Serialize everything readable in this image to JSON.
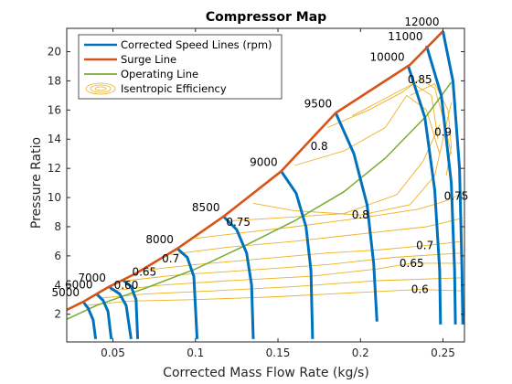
{
  "chart_data": {
    "type": "line",
    "title": "Compressor Map",
    "xlabel": "Corrected Mass Flow Rate (kg/s)",
    "ylabel": "Pressure Ratio",
    "xlim": [
      0.022,
      0.263
    ],
    "ylim": [
      0.1,
      21.6
    ],
    "xticks": [
      0.05,
      0.1,
      0.15,
      0.2,
      0.25
    ],
    "xtick_labels": [
      "0.05",
      "0.1",
      "0.15",
      "0.2",
      "0.25"
    ],
    "yticks": [
      2,
      4,
      6,
      8,
      10,
      12,
      14,
      16,
      18,
      20
    ],
    "ytick_labels": [
      "2",
      "4",
      "6",
      "8",
      "10",
      "12",
      "14",
      "16",
      "18",
      "20"
    ],
    "grid": false,
    "legend_position": "top-left",
    "legend": [
      {
        "label": "Corrected Speed Lines (rpm)",
        "style": "speed"
      },
      {
        "label": "Surge Line",
        "style": "surge"
      },
      {
        "label": "Operating Line",
        "style": "operating"
      },
      {
        "label": "Isentropic Efficiency",
        "style": "efficiency"
      }
    ],
    "colors": {
      "speed": "#0072BD",
      "surge": "#D95319",
      "operating": "#77AC30",
      "efficiency": "#EDB120"
    },
    "surge_line": [
      [
        0.022,
        2.3
      ],
      [
        0.032,
        2.85
      ],
      [
        0.047,
        3.85
      ],
      [
        0.064,
        4.8
      ],
      [
        0.089,
        6.5
      ],
      [
        0.117,
        8.7
      ],
      [
        0.152,
        11.8
      ],
      [
        0.185,
        15.8
      ],
      [
        0.23,
        19.1
      ],
      [
        0.25,
        21.4
      ]
    ],
    "operating_line": [
      [
        0.021,
        1.6
      ],
      [
        0.04,
        2.6
      ],
      [
        0.07,
        3.8
      ],
      [
        0.1,
        5.1
      ],
      [
        0.13,
        6.7
      ],
      [
        0.16,
        8.4
      ],
      [
        0.19,
        10.4
      ],
      [
        0.215,
        12.7
      ],
      [
        0.24,
        15.6
      ],
      [
        0.255,
        17.9
      ]
    ],
    "speed_lines": [
      {
        "rpm": 5000,
        "label": "5000",
        "points": [
          [
            0.032,
            2.85
          ],
          [
            0.035,
            2.4
          ],
          [
            0.038,
            1.6
          ],
          [
            0.0395,
            0.3
          ]
        ]
      },
      {
        "rpm": 6000,
        "label": "6000",
        "points": [
          [
            0.04,
            3.4
          ],
          [
            0.044,
            2.95
          ],
          [
            0.047,
            2.2
          ],
          [
            0.049,
            0.3
          ]
        ]
      },
      {
        "rpm": 7000,
        "label": "7000",
        "points": [
          [
            0.048,
            3.85
          ],
          [
            0.054,
            3.4
          ],
          [
            0.058,
            2.6
          ],
          [
            0.061,
            0.3
          ]
        ]
      },
      {
        "rpm": 7500,
        "label": "",
        "points": [
          [
            0.056,
            4.35
          ],
          [
            0.061,
            3.9
          ],
          [
            0.064,
            3.0
          ],
          [
            0.065,
            0.3
          ]
        ]
      },
      {
        "rpm": 8000,
        "label": "8000",
        "points": [
          [
            0.089,
            6.5
          ],
          [
            0.095,
            5.9
          ],
          [
            0.099,
            4.6
          ],
          [
            0.101,
            0.3
          ]
        ]
      },
      {
        "rpm": 8500,
        "label": "8500",
        "points": [
          [
            0.117,
            8.7
          ],
          [
            0.125,
            7.8
          ],
          [
            0.131,
            6.2
          ],
          [
            0.134,
            4.0
          ],
          [
            0.135,
            0.3
          ]
        ]
      },
      {
        "rpm": 9000,
        "label": "9000",
        "points": [
          [
            0.152,
            11.8
          ],
          [
            0.161,
            10.3
          ],
          [
            0.167,
            8.0
          ],
          [
            0.17,
            5.0
          ],
          [
            0.171,
            0.3
          ]
        ]
      },
      {
        "rpm": 9500,
        "label": "9500",
        "points": [
          [
            0.185,
            15.8
          ],
          [
            0.196,
            13.0
          ],
          [
            0.204,
            9.5
          ],
          [
            0.208,
            5.5
          ],
          [
            0.21,
            1.5
          ]
        ]
      },
      {
        "rpm": 10000,
        "label": "10000",
        "points": [
          [
            0.229,
            19.0
          ],
          [
            0.239,
            15.5
          ],
          [
            0.245,
            10.5
          ],
          [
            0.248,
            5.0
          ],
          [
            0.2485,
            1.3
          ]
        ]
      },
      {
        "rpm": 11000,
        "label": "11000",
        "points": [
          [
            0.24,
            20.4
          ],
          [
            0.249,
            17.0
          ],
          [
            0.255,
            11.0
          ],
          [
            0.257,
            5.0
          ],
          [
            0.2575,
            1.3
          ]
        ]
      },
      {
        "rpm": 12000,
        "label": "12000",
        "points": [
          [
            0.25,
            21.4
          ],
          [
            0.256,
            18.0
          ],
          [
            0.26,
            12.0
          ],
          [
            0.2615,
            5.0
          ],
          [
            0.262,
            1.3
          ]
        ]
      }
    ],
    "efficiency_contours": [
      {
        "level": 0.6,
        "label": "0.6",
        "label_at": [
          0.236,
          3.7
        ],
        "points": [
          [
            0.034,
            2.6
          ],
          [
            0.06,
            2.9
          ],
          [
            0.1,
            3.0
          ],
          [
            0.15,
            3.2
          ],
          [
            0.2,
            3.5
          ],
          [
            0.236,
            3.7
          ],
          [
            0.262,
            3.6
          ]
        ]
      },
      {
        "level": 0.65,
        "label": "0.65",
        "label_at": [
          0.231,
          5.5
        ],
        "points": [
          [
            0.048,
            3.6
          ],
          [
            0.08,
            4.0
          ],
          [
            0.12,
            4.3
          ],
          [
            0.17,
            4.6
          ],
          [
            0.21,
            5.1
          ],
          [
            0.231,
            5.5
          ],
          [
            0.262,
            5.5
          ]
        ]
      },
      {
        "level": 0.7,
        "label": "0.7",
        "label_at": [
          0.239,
          6.7
        ],
        "points": [
          [
            0.068,
            5.0
          ],
          [
            0.1,
            5.4
          ],
          [
            0.14,
            5.8
          ],
          [
            0.18,
            6.2
          ],
          [
            0.21,
            6.4
          ],
          [
            0.239,
            6.7
          ],
          [
            0.262,
            7.0
          ]
        ]
      },
      {
        "level": 0.75,
        "label": "0.75",
        "label_at": [
          0.258,
          10.1
        ],
        "points": [
          [
            0.1,
            7.2
          ],
          [
            0.13,
            7.6
          ],
          [
            0.16,
            8.0
          ],
          [
            0.2,
            8.6
          ],
          [
            0.235,
            9.2
          ],
          [
            0.25,
            9.7
          ],
          [
            0.258,
            10.1
          ],
          [
            0.262,
            10.3
          ]
        ]
      },
      {
        "level": 0.8,
        "label": "0.8",
        "label_at": [
          0.2,
          8.8
        ],
        "points": [
          [
            0.135,
            9.6
          ],
          [
            0.16,
            9.1
          ],
          [
            0.2,
            8.8
          ],
          [
            0.23,
            9.5
          ],
          [
            0.245,
            11.5
          ],
          [
            0.25,
            14.0
          ],
          [
            0.255,
            16.5
          ]
        ]
      },
      {
        "level": 0.85,
        "label": "0.85",
        "label_at": [
          0.236,
          18.1
        ],
        "points": [
          [
            0.18,
            14.8
          ],
          [
            0.205,
            16.0
          ],
          [
            0.225,
            17.2
          ],
          [
            0.236,
            18.1
          ],
          [
            0.245,
            17.5
          ],
          [
            0.25,
            15.5
          ],
          [
            0.255,
            13.0
          ]
        ]
      },
      {
        "level": 0.9,
        "label": "0.9",
        "label_at": [
          0.25,
          14.5
        ],
        "points": [
          [
            0.23,
            17.0
          ],
          [
            0.245,
            17.8
          ],
          [
            0.253,
            16.0
          ],
          [
            0.255,
            13.5
          ],
          [
            0.252,
            11.5
          ]
        ]
      },
      {
        "level": 0.875,
        "label": "",
        "label_at": null,
        "points": [
          [
            0.195,
            15.6
          ],
          [
            0.215,
            16.8
          ],
          [
            0.232,
            17.8
          ],
          [
            0.243,
            17.0
          ],
          [
            0.247,
            14.0
          ]
        ]
      },
      {
        "level": 0.825,
        "label": "",
        "label_at": null,
        "points": [
          [
            0.16,
            12.2
          ],
          [
            0.19,
            13.2
          ],
          [
            0.215,
            14.8
          ],
          [
            0.228,
            17.0
          ],
          [
            0.24,
            16.0
          ],
          [
            0.248,
            13.0
          ]
        ]
      },
      {
        "level": 0.775,
        "label": "",
        "label_at": null,
        "points": [
          [
            0.12,
            8.4
          ],
          [
            0.15,
            8.6
          ],
          [
            0.19,
            8.9
          ],
          [
            0.222,
            10.2
          ],
          [
            0.238,
            12.5
          ],
          [
            0.248,
            15.0
          ]
        ]
      },
      {
        "level": 0.725,
        "label": "",
        "label_at": null,
        "points": [
          [
            0.085,
            6.1
          ],
          [
            0.12,
            6.6
          ],
          [
            0.16,
            7.0
          ],
          [
            0.2,
            7.5
          ],
          [
            0.24,
            8.0
          ],
          [
            0.262,
            8.6
          ]
        ]
      },
      {
        "level": 0.675,
        "label": "",
        "label_at": null,
        "points": [
          [
            0.058,
            4.3
          ],
          [
            0.09,
            4.7
          ],
          [
            0.13,
            5.0
          ],
          [
            0.18,
            5.4
          ],
          [
            0.22,
            5.9
          ],
          [
            0.262,
            6.2
          ]
        ]
      },
      {
        "level": 0.625,
        "label": "",
        "label_at": null,
        "points": [
          [
            0.042,
            3.1
          ],
          [
            0.07,
            3.4
          ],
          [
            0.11,
            3.6
          ],
          [
            0.16,
            3.9
          ],
          [
            0.21,
            4.3
          ],
          [
            0.262,
            4.5
          ]
        ]
      }
    ],
    "efficiency_labels_left": [
      {
        "label": "0.60",
        "at": [
          0.058,
          4.0
        ]
      },
      {
        "label": "0.65",
        "at": [
          0.069,
          4.9
        ]
      },
      {
        "label": "0.7",
        "at": [
          0.085,
          5.8
        ]
      },
      {
        "label": "0.75",
        "at": [
          0.126,
          8.3
        ]
      },
      {
        "label": "0.8",
        "at": [
          0.175,
          13.5
        ]
      }
    ]
  }
}
